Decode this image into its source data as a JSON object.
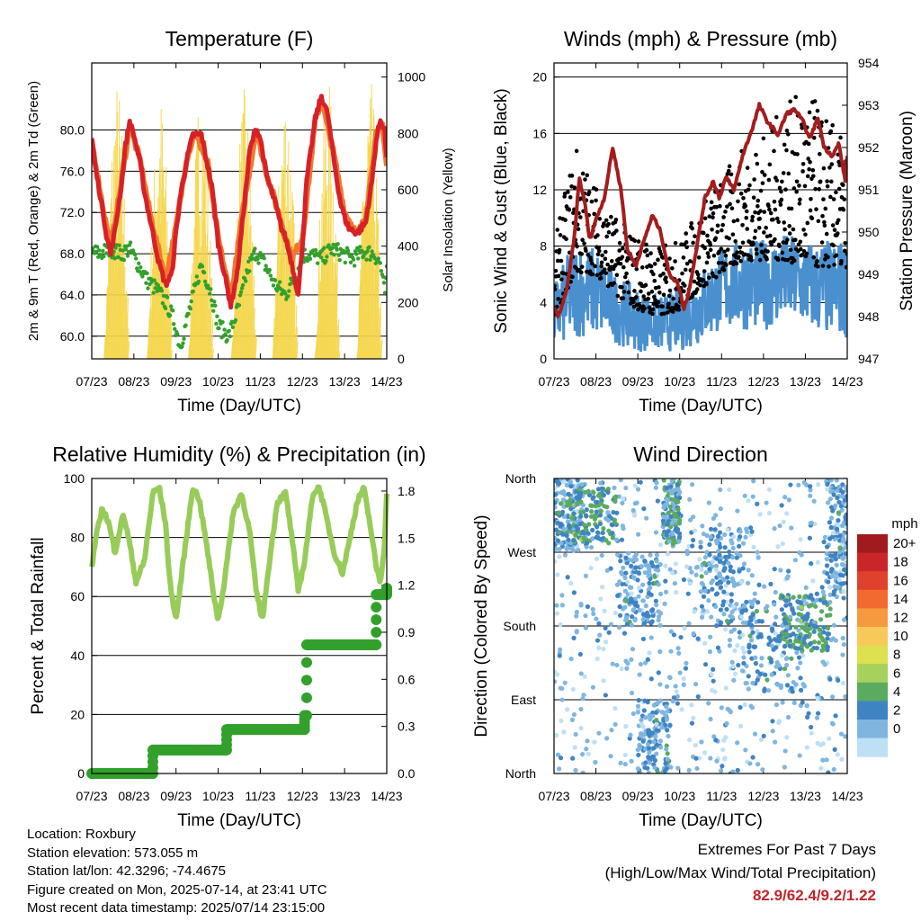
{
  "chart_data": [
    {
      "type": "line",
      "title": "Temperature (F)",
      "xlabel": "Time (Day/UTC)",
      "ylabel": "2m & 9m T (Red, Orange) & 2m Td (Green)",
      "ylabel_right": "Solar Insolation (Yellow)",
      "xticks": [
        "07/23",
        "08/23",
        "09/23",
        "10/23",
        "11/23",
        "12/23",
        "13/23",
        "14/23"
      ],
      "ylim": [
        57.8,
        86.5
      ],
      "yticks": [
        60.0,
        64.0,
        68.0,
        72.0,
        76.0,
        80.0
      ],
      "ylim_right": [
        0,
        1050
      ],
      "yticks_right": [
        0,
        200,
        400,
        600,
        800,
        1000
      ],
      "grid": true,
      "series": [
        {
          "name": "2m T",
          "color": "#d62128",
          "axis": "left",
          "x": [
            0,
            0.1,
            0.25,
            0.35,
            0.45,
            0.55,
            0.7,
            0.8,
            0.9,
            1.0,
            1.15,
            1.25,
            1.4,
            1.6,
            1.75,
            1.9,
            2.0,
            2.1,
            2.25,
            2.4,
            2.6,
            2.75,
            2.85,
            2.95,
            3.0,
            3.1,
            3.3,
            3.45,
            3.6,
            3.75,
            3.9,
            4.0,
            4.15,
            4.35,
            4.5,
            4.6,
            4.75,
            4.9,
            5.0,
            5.1,
            5.3,
            5.45,
            5.6,
            5.75,
            5.9,
            6.0,
            6.1,
            6.3,
            6.5,
            6.65,
            6.75,
            6.85,
            6.95,
            7.0
          ],
          "y": [
            79.2,
            76.0,
            72.5,
            69.8,
            68.0,
            70.2,
            74.5,
            78.5,
            80.8,
            79.5,
            76.8,
            74.0,
            71.0,
            67.0,
            65.0,
            66.0,
            70.0,
            73.5,
            77.0,
            79.5,
            79.6,
            76.5,
            74.5,
            71.0,
            69.0,
            67.0,
            63.0,
            66.0,
            72.0,
            78.0,
            80.2,
            79.2,
            75.5,
            73.0,
            70.5,
            69.5,
            67.0,
            64.0,
            69.0,
            75.0,
            81.0,
            83.3,
            81.5,
            77.0,
            73.0,
            71.5,
            70.5,
            70.0,
            71.0,
            75.0,
            79.0,
            81.0,
            80.0,
            77.0
          ]
        },
        {
          "name": "9m T",
          "color": "#f0782c",
          "axis": "left",
          "x": [
            0,
            0.25,
            0.45,
            0.7,
            0.9,
            1.15,
            1.4,
            1.75,
            2.0,
            2.25,
            2.45,
            2.75,
            3.0,
            3.3,
            3.6,
            3.9,
            4.15,
            4.5,
            4.75,
            5.0,
            5.3,
            5.45,
            5.75,
            6.0,
            6.3,
            6.5,
            6.75,
            6.9,
            7.0
          ],
          "y": [
            79.0,
            72.8,
            68.5,
            74.8,
            80.5,
            77.0,
            71.5,
            65.5,
            70.5,
            77.2,
            79.8,
            76.8,
            69.5,
            63.5,
            72.5,
            80.0,
            75.8,
            71.0,
            67.5,
            69.5,
            80.8,
            83.0,
            77.5,
            72.0,
            69.8,
            71.5,
            79.5,
            80.5,
            76.5
          ]
        },
        {
          "name": "2m Td",
          "color": "#33a02c",
          "axis": "left",
          "x": [
            0,
            0.2,
            0.45,
            0.7,
            0.9,
            1.1,
            1.3,
            1.55,
            1.8,
            1.95,
            2.1,
            2.35,
            2.6,
            2.85,
            3.0,
            3.25,
            3.5,
            3.7,
            3.9,
            4.1,
            4.35,
            4.6,
            4.85,
            5.0,
            5.2,
            5.45,
            5.7,
            5.95,
            6.2,
            6.45,
            6.7,
            6.85,
            6.95,
            7.0
          ],
          "y": [
            68.2,
            68.0,
            68.5,
            68.0,
            68.5,
            67.0,
            65.5,
            64.5,
            63.0,
            61.5,
            59.0,
            63.0,
            67.0,
            64.0,
            61.0,
            60.0,
            63.0,
            66.5,
            68.2,
            67.0,
            65.0,
            64.0,
            66.0,
            67.8,
            68.0,
            67.5,
            68.5,
            68.0,
            67.5,
            68.2,
            68.0,
            67.0,
            64.0,
            66.0
          ]
        },
        {
          "name": "Solar Insolation",
          "color": "#f5d547",
          "axis": "right",
          "daily_peak_x": [
            0.58,
            1.6,
            2.58,
            3.6,
            4.58,
            5.58,
            6.58
          ],
          "daily_peak_y": [
            1000,
            950,
            1000,
            960,
            1000,
            1000,
            1000
          ]
        }
      ]
    },
    {
      "type": "line",
      "title": "Winds (mph) & Pressure (mb)",
      "xlabel": "Time (Day/UTC)",
      "ylabel": "Sonic Wind & Gust (Blue, Black)",
      "ylabel_right": "Station Pressure (Maroon)",
      "xticks": [
        "07/23",
        "08/23",
        "09/23",
        "10/23",
        "11/23",
        "12/23",
        "13/23",
        "14/23"
      ],
      "ylim": [
        0,
        21
      ],
      "yticks": [
        0,
        4,
        8,
        12,
        16,
        20
      ],
      "ylim_right": [
        947,
        954
      ],
      "yticks_right": [
        947,
        948,
        949,
        950,
        951,
        952,
        953,
        954
      ],
      "grid": true,
      "series": [
        {
          "name": "Sonic Wind",
          "color": "#4a90cf",
          "axis": "left",
          "x": [
            0,
            0.5,
            1.0,
            1.5,
            2.0,
            2.5,
            3.0,
            3.5,
            4.0,
            4.5,
            5.0,
            5.5,
            6.0,
            6.5,
            7.0
          ],
          "y_low": [
            0.5,
            1.5,
            1.5,
            1.0,
            0.5,
            0.5,
            0.5,
            1.0,
            2.0,
            2.0,
            2.0,
            2.5,
            2.0,
            1.5,
            1.5
          ],
          "y_high": [
            5.5,
            8.5,
            8.0,
            6.0,
            5.0,
            4.5,
            5.0,
            6.5,
            8.0,
            8.5,
            8.5,
            9.0,
            8.5,
            8.5,
            8.5
          ]
        },
        {
          "name": "Gust",
          "color": "#000000",
          "axis": "left",
          "x": [
            0,
            0.5,
            1.0,
            1.5,
            2.0,
            2.5,
            3.0,
            3.5,
            4.0,
            4.5,
            5.0,
            5.5,
            6.0,
            6.5,
            7.0
          ],
          "y_low": [
            3.0,
            6.0,
            6.0,
            4.5,
            3.5,
            3.0,
            3.5,
            5.0,
            6.0,
            7.0,
            7.0,
            7.0,
            6.5,
            6.5,
            6.5
          ],
          "y_high": [
            8.0,
            15.5,
            12.5,
            10.0,
            9.0,
            8.0,
            8.5,
            11.0,
            13.0,
            15.0,
            16.0,
            18.0,
            19.2,
            17.5,
            15.0
          ]
        },
        {
          "name": "Station Pressure",
          "color": "#a31d1d",
          "axis": "right",
          "x": [
            0,
            0.1,
            0.3,
            0.5,
            0.6,
            0.75,
            0.85,
            1.0,
            1.2,
            1.4,
            1.6,
            1.75,
            1.95,
            2.15,
            2.35,
            2.55,
            2.75,
            2.95,
            3.1,
            3.2,
            3.4,
            3.6,
            3.8,
            3.95,
            4.1,
            4.3,
            4.5,
            4.75,
            4.9,
            5.1,
            5.35,
            5.55,
            5.75,
            5.95,
            6.1,
            6.3,
            6.45,
            6.65,
            6.8,
            6.95,
            7.0
          ],
          "y": [
            948.2,
            948.0,
            948.6,
            950.0,
            951.3,
            950.6,
            949.8,
            950.3,
            950.8,
            952.0,
            951.0,
            949.6,
            949.2,
            949.8,
            950.4,
            950.0,
            949.0,
            948.8,
            948.2,
            948.5,
            949.6,
            950.8,
            951.2,
            950.8,
            951.3,
            951.0,
            951.8,
            952.5,
            953.0,
            952.6,
            952.3,
            952.8,
            952.9,
            952.6,
            952.2,
            952.7,
            952.0,
            951.8,
            952.1,
            951.2,
            951.8
          ]
        }
      ]
    },
    {
      "type": "line",
      "title": "Relative Humidity (%) & Precipitation (in)",
      "xlabel": "Time (Day/UTC)",
      "ylabel": "Percent & Total Rainfall",
      "xticks": [
        "07/23",
        "08/23",
        "09/23",
        "10/23",
        "11/23",
        "12/23",
        "13/23",
        "14/23"
      ],
      "ylim": [
        0,
        100
      ],
      "yticks": [
        0,
        20,
        40,
        60,
        80,
        100
      ],
      "ylim_right": [
        0,
        1.88
      ],
      "yticks_right": [
        0.0,
        0.3,
        0.6,
        0.9,
        1.2,
        1.5,
        1.8
      ],
      "grid": true,
      "series": [
        {
          "name": "Relative Humidity",
          "color": "#98cc5a",
          "axis": "left",
          "x": [
            0,
            0.1,
            0.25,
            0.4,
            0.55,
            0.75,
            0.9,
            1.05,
            1.25,
            1.45,
            1.6,
            1.75,
            1.85,
            2.0,
            2.2,
            2.4,
            2.55,
            2.7,
            2.9,
            3.0,
            3.15,
            3.35,
            3.55,
            3.75,
            3.9,
            4.05,
            4.2,
            4.4,
            4.6,
            4.75,
            4.9,
            5.05,
            5.25,
            5.4,
            5.55,
            5.75,
            5.95,
            6.1,
            6.3,
            6.45,
            6.6,
            6.75,
            6.85,
            6.95,
            7.0
          ],
          "y": [
            70,
            80,
            90,
            85,
            75,
            88,
            78,
            65,
            72,
            95,
            97,
            85,
            65,
            52,
            75,
            97,
            93,
            80,
            60,
            52,
            65,
            88,
            95,
            82,
            62,
            52,
            70,
            92,
            95,
            80,
            62,
            72,
            95,
            97,
            88,
            75,
            68,
            78,
            92,
            97,
            85,
            70,
            65,
            78,
            95
          ]
        },
        {
          "name": "Precipitation",
          "color": "#33a02c",
          "axis": "right",
          "x": [
            0,
            1.4,
            1.45,
            3.15,
            3.2,
            5.0,
            5.05,
            5.1,
            5.5,
            6.7,
            6.75,
            6.85,
            7.0
          ],
          "y": [
            0.0,
            0.0,
            0.15,
            0.15,
            0.28,
            0.28,
            0.37,
            0.82,
            0.82,
            0.82,
            1.14,
            1.14,
            1.18
          ]
        }
      ]
    },
    {
      "type": "scatter",
      "title": "Wind Direction",
      "xlabel": "Time (Day/UTC)",
      "ylabel": "Direction (Colored By Speed)",
      "xticks": [
        "07/23",
        "08/23",
        "09/23",
        "10/23",
        "11/23",
        "12/23",
        "13/23",
        "14/23"
      ],
      "yticks": [
        "North",
        "East",
        "South",
        "West",
        "North"
      ],
      "ylim": [
        0,
        360
      ],
      "grid": true,
      "colorbar": {
        "title": "mph",
        "labels": [
          "20+",
          "18",
          "16",
          "14",
          "12",
          "10",
          "8",
          "6",
          "4",
          "2",
          "0"
        ],
        "colors": [
          "#a01b1e",
          "#c9262a",
          "#e0412c",
          "#f26a30",
          "#f79a3f",
          "#f7c95a",
          "#dde04f",
          "#a5d15c",
          "#5aab60",
          "#3f84c2",
          "#7fb6e0",
          "#bde0f5"
        ]
      },
      "clusters": [
        {
          "x_from": 0.0,
          "x_to": 0.7,
          "dir_from": 270,
          "dir_to": 360,
          "speed": 3
        },
        {
          "x_from": 0.3,
          "x_to": 1.5,
          "dir_from": 280,
          "dir_to": 350,
          "speed": 5
        },
        {
          "x_from": 1.5,
          "x_to": 2.5,
          "dir_from": 180,
          "dir_to": 270,
          "speed": 3
        },
        {
          "x_from": 2.0,
          "x_to": 2.8,
          "dir_from": 0,
          "dir_to": 90,
          "speed": 3
        },
        {
          "x_from": 2.6,
          "x_to": 3.0,
          "dir_from": 280,
          "dir_to": 360,
          "speed": 4
        },
        {
          "x_from": 3.5,
          "x_to": 4.6,
          "dir_from": 180,
          "dir_to": 300,
          "speed": 3
        },
        {
          "x_from": 4.5,
          "x_to": 6.0,
          "dir_from": 100,
          "dir_to": 210,
          "speed": 3
        },
        {
          "x_from": 5.4,
          "x_to": 6.6,
          "dir_from": 150,
          "dir_to": 220,
          "speed": 5
        },
        {
          "x_from": 6.5,
          "x_to": 7.0,
          "dir_from": 220,
          "dir_to": 360,
          "speed": 3
        }
      ]
    }
  ],
  "info": {
    "location": "Location: Roxbury",
    "elevation": "Station elevation: 573.055 m",
    "latlon": "Station lat/lon: 42.3296; -74.4675",
    "created": "Figure created on Mon, 2025-07-14, at 23:41 UTC",
    "latest": "Most recent data timestamp: 2025/07/14 23:15:00"
  },
  "extremes": {
    "title": "Extremes For Past 7 Days",
    "subtitle": "(High/Low/Max Wind/Total Precipitation)",
    "values": "82.9/62.4/9.2/1.22"
  }
}
